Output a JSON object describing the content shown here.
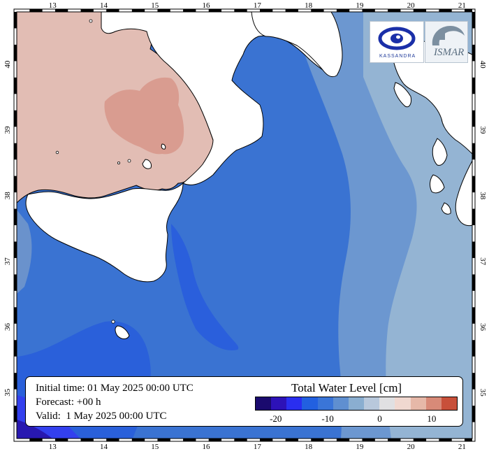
{
  "map": {
    "lon_ticks": [
      "13",
      "14",
      "15",
      "16",
      "17",
      "18",
      "19",
      "20",
      "21"
    ],
    "lat_ticks": [
      "40",
      "39",
      "38",
      "37",
      "36",
      "35"
    ],
    "lon_range": [
      12.3,
      21.2
    ],
    "lat_range": [
      34.3,
      40.8
    ]
  },
  "info": {
    "initial_time": "Initial time: 01 May 2025 00:00 UTC",
    "forecast": "Forecast: +00 h",
    "valid": "Valid:  1 May 2025 00:00 UTC"
  },
  "legend": {
    "title": "Total Water Level [cm]",
    "tick_labels": [
      "-20",
      "-10",
      "0",
      "10"
    ],
    "colors": [
      "#1a0a6e",
      "#2d12b8",
      "#2a2ef0",
      "#2260e0",
      "#3a75d8",
      "#5f8fd0",
      "#8aaed0",
      "#b8c8dc",
      "#e0e0e2",
      "#f0d8d0",
      "#e6b8a8",
      "#d88a78",
      "#c8503a"
    ]
  },
  "logos": {
    "left_text": "KASSANDRA",
    "right_text": "ISMAR"
  },
  "palette": {
    "land": "#ffffff",
    "water_deep": "#2a5fd6",
    "water_mid": "#3b74d0",
    "water_east": "#6693d0",
    "water_far": "#94b4d2",
    "calabria": "#e2bcb3",
    "calabria_core": "#d69a8e"
  }
}
